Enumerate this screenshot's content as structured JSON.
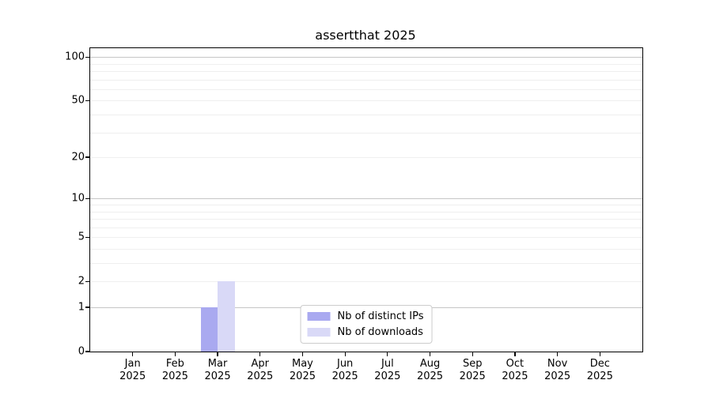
{
  "chart_data": {
    "type": "bar",
    "title": "assertthat 2025",
    "categories": [
      "Jan",
      "Feb",
      "Mar",
      "Apr",
      "May",
      "Jun",
      "Jul",
      "Aug",
      "Sep",
      "Oct",
      "Nov",
      "Dec"
    ],
    "category_year": "2025",
    "series": [
      {
        "name": "Nb of distinct IPs",
        "color": "#a9a9f0",
        "values": [
          0,
          0,
          1,
          0,
          0,
          0,
          0,
          0,
          0,
          0,
          0,
          0
        ]
      },
      {
        "name": "Nb of downloads",
        "color": "#d9d9f7",
        "values": [
          0,
          0,
          2,
          0,
          0,
          0,
          0,
          0,
          0,
          0,
          0,
          0
        ]
      }
    ],
    "yscale": "log1p",
    "ylim": [
      0,
      115
    ],
    "y_major_ticks": [
      0,
      1,
      2,
      5,
      10,
      20,
      50,
      100
    ],
    "y_gridlines": [
      1,
      2,
      3,
      4,
      5,
      6,
      7,
      8,
      9,
      10,
      20,
      30,
      40,
      50,
      60,
      70,
      80,
      90,
      100
    ],
    "y_emphasized_gridlines": [
      1,
      10,
      100
    ],
    "grid": "horizontal-only",
    "legend_position": "lower center",
    "colors": {
      "grid_minor": "#efefef",
      "grid_major": "#c6c6c6",
      "spine": "#000000",
      "text": "#000000",
      "background": "#ffffff"
    }
  }
}
